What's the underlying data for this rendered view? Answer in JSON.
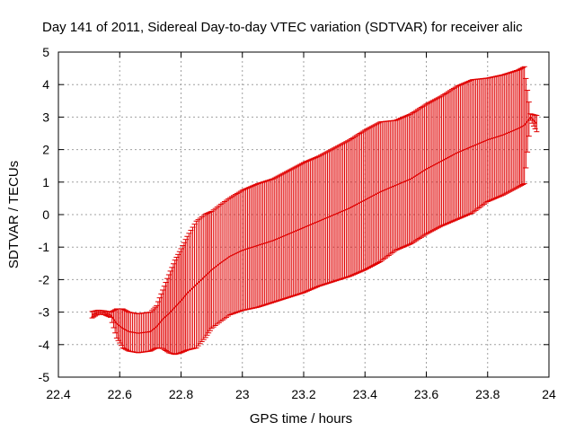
{
  "chart_data": {
    "type": "line",
    "title": "Day 141 of 2011, Sidereal Day-to-day VTEC variation (SDTVAR) for receiver alic",
    "xlabel": "GPS time / hours",
    "ylabel": "SDTVAR / TECUs",
    "xlim": [
      22.4,
      24
    ],
    "ylim": [
      -5,
      5
    ],
    "xticks": [
      "22.4",
      "22.6",
      "22.8",
      "23",
      "23.2",
      "23.4",
      "23.6",
      "23.8",
      "24"
    ],
    "yticks": [
      "-5",
      "-4",
      "-3",
      "-2",
      "-1",
      "0",
      "1",
      "2",
      "3",
      "4",
      "5"
    ],
    "grid": true,
    "series": [
      {
        "name": "SDTVAR",
        "color": "#e00000",
        "style": "line with error bars",
        "points": [
          {
            "x": 22.51,
            "y": -3.08,
            "err": 0.1
          },
          {
            "x": 22.53,
            "y": -3.0,
            "err": 0.06
          },
          {
            "x": 22.55,
            "y": -3.02,
            "err": 0.06
          },
          {
            "x": 22.57,
            "y": -3.08,
            "err": 0.08
          },
          {
            "x": 22.59,
            "y": -3.35,
            "err": 0.45
          },
          {
            "x": 22.61,
            "y": -3.5,
            "err": 0.6
          },
          {
            "x": 22.63,
            "y": -3.6,
            "err": 0.6
          },
          {
            "x": 22.66,
            "y": -3.65,
            "err": 0.6
          },
          {
            "x": 22.7,
            "y": -3.6,
            "err": 0.6
          },
          {
            "x": 22.72,
            "y": -3.45,
            "err": 0.65
          },
          {
            "x": 22.74,
            "y": -3.22,
            "err": 0.9
          },
          {
            "x": 22.76,
            "y": -3.05,
            "err": 1.2
          },
          {
            "x": 22.78,
            "y": -2.85,
            "err": 1.45
          },
          {
            "x": 22.8,
            "y": -2.65,
            "err": 1.6
          },
          {
            "x": 22.82,
            "y": -2.42,
            "err": 1.75
          },
          {
            "x": 22.85,
            "y": -2.15,
            "err": 1.95
          },
          {
            "x": 22.88,
            "y": -1.88,
            "err": 1.9
          },
          {
            "x": 22.9,
            "y": -1.7,
            "err": 1.8
          },
          {
            "x": 22.93,
            "y": -1.48,
            "err": 1.8
          },
          {
            "x": 22.96,
            "y": -1.28,
            "err": 1.8
          },
          {
            "x": 23.0,
            "y": -1.1,
            "err": 1.85
          },
          {
            "x": 23.05,
            "y": -0.95,
            "err": 1.9
          },
          {
            "x": 23.1,
            "y": -0.8,
            "err": 1.9
          },
          {
            "x": 23.15,
            "y": -0.6,
            "err": 1.95
          },
          {
            "x": 23.2,
            "y": -0.4,
            "err": 2.0
          },
          {
            "x": 23.25,
            "y": -0.2,
            "err": 2.0
          },
          {
            "x": 23.3,
            "y": 0.0,
            "err": 2.05
          },
          {
            "x": 23.35,
            "y": 0.2,
            "err": 2.1
          },
          {
            "x": 23.4,
            "y": 0.45,
            "err": 2.15
          },
          {
            "x": 23.45,
            "y": 0.7,
            "err": 2.15
          },
          {
            "x": 23.5,
            "y": 0.9,
            "err": 2.0
          },
          {
            "x": 23.55,
            "y": 1.1,
            "err": 2.0
          },
          {
            "x": 23.6,
            "y": 1.4,
            "err": 2.0
          },
          {
            "x": 23.65,
            "y": 1.65,
            "err": 2.0
          },
          {
            "x": 23.7,
            "y": 1.9,
            "err": 2.05
          },
          {
            "x": 23.75,
            "y": 2.1,
            "err": 2.05
          },
          {
            "x": 23.8,
            "y": 2.3,
            "err": 1.9
          },
          {
            "x": 23.85,
            "y": 2.45,
            "err": 1.85
          },
          {
            "x": 23.9,
            "y": 2.65,
            "err": 1.8
          },
          {
            "x": 23.92,
            "y": 2.75,
            "err": 1.8
          },
          {
            "x": 23.94,
            "y": 3.0,
            "err": 0.1
          },
          {
            "x": 23.96,
            "y": 2.8,
            "err": 0.25
          }
        ]
      }
    ]
  }
}
